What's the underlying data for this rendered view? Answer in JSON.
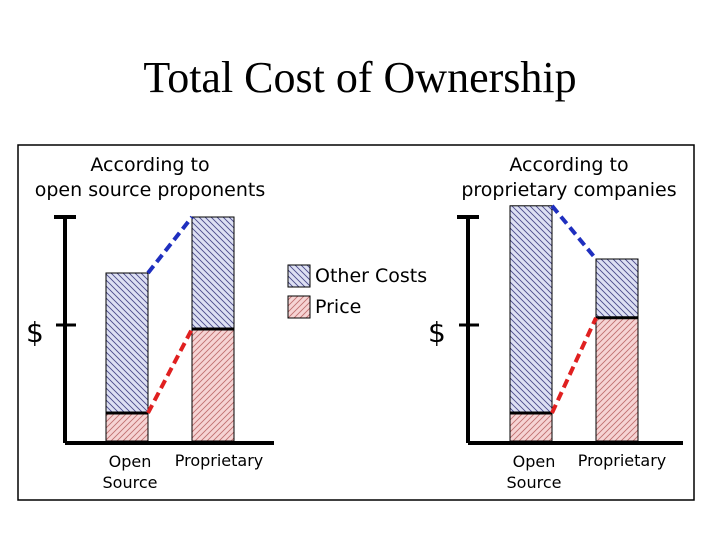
{
  "title": "Total Cost of Ownership",
  "chart_data": {
    "type": "bar",
    "stacked": true,
    "legend": [
      {
        "label": "Other Costs",
        "pattern": "hatch-blue"
      },
      {
        "label": "Price",
        "pattern": "hatch-red"
      }
    ],
    "y_axis_label": "$",
    "panels": [
      {
        "heading_line1": "According to",
        "heading_line2": "open source proponents",
        "bars": [
          {
            "category_line1": "Open",
            "category_line2": "Source",
            "price": 1,
            "other_costs": 5
          },
          {
            "category_line1": "Proprietary",
            "category_line2": "",
            "price": 4,
            "other_costs": 4
          }
        ]
      },
      {
        "heading_line1": "According to",
        "heading_line2": "proprietary companies",
        "bars": [
          {
            "category_line1": "Open",
            "category_line2": "Source",
            "price": 1,
            "other_costs": 7.4
          },
          {
            "category_line1": "Proprietary",
            "category_line2": "",
            "price": 4.4,
            "other_costs": 2.1
          }
        ]
      }
    ],
    "colors": {
      "price_line": "#e02020",
      "other_line": "#1f2fbf",
      "price_fill": "#f6d4d4",
      "other_fill": "#dde0f3",
      "axis": "#000000"
    }
  }
}
